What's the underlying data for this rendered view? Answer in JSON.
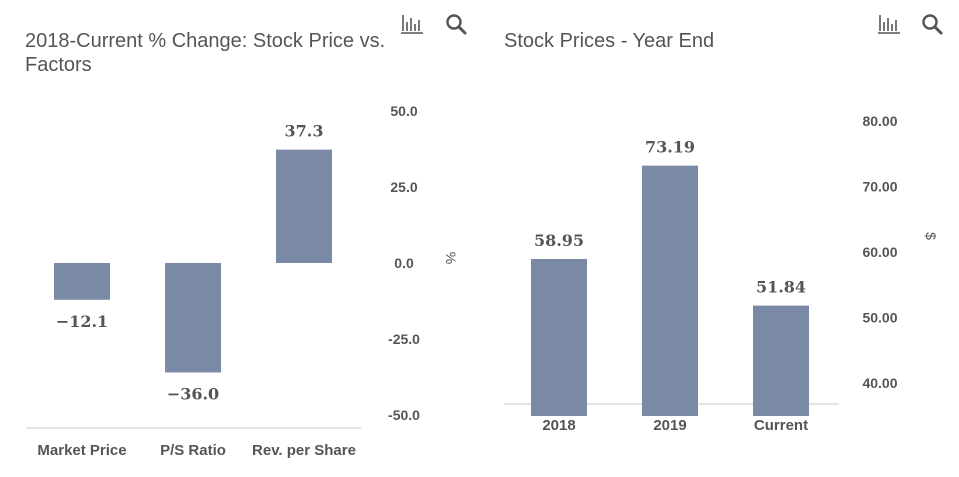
{
  "chart_data": [
    {
      "type": "bar",
      "title": "2018-Current % Change: Stock Price vs. Factors",
      "categories": [
        "Market Price",
        "P/S Ratio",
        "Rev. per Share"
      ],
      "values": [
        -12.1,
        -36.0,
        37.3
      ],
      "data_labels": [
        "−12.1",
        "−36.0",
        "37.3"
      ],
      "xlabel": "",
      "ylabel": "%",
      "ylim": [
        -50,
        50
      ],
      "yticks": [
        50,
        25,
        0,
        -25,
        -50
      ],
      "ytick_labels": [
        "50.0",
        "25.0",
        "0.0",
        "-25.0",
        "-50.0"
      ],
      "y_axis_side": "right",
      "grid": false,
      "bar_color": "#7a8aa6"
    },
    {
      "type": "bar",
      "title": "Stock Prices - Year End",
      "categories": [
        "2018",
        "2019",
        "Current"
      ],
      "values": [
        58.95,
        73.19,
        51.84
      ],
      "data_labels": [
        "58.95",
        "73.19",
        "51.84"
      ],
      "xlabel": "",
      "ylabel": "$",
      "ylim": [
        35,
        80
      ],
      "yticks": [
        80,
        70,
        60,
        50,
        40
      ],
      "ytick_labels": [
        "80.00",
        "70.00",
        "60.00",
        "50.00",
        "40.00"
      ],
      "y_axis_side": "right",
      "grid": false,
      "bar_color": "#7a8aa6"
    }
  ],
  "toolbar": {
    "icons": [
      "bar-chart-icon",
      "search-icon"
    ]
  }
}
